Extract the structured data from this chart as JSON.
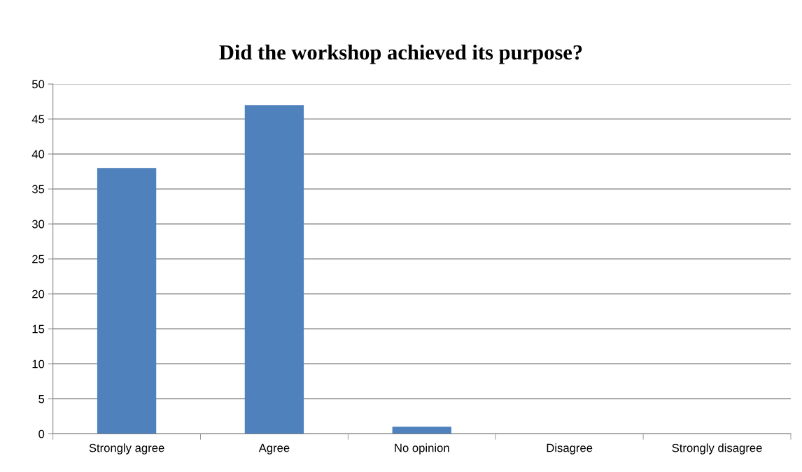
{
  "chart_data": {
    "type": "bar",
    "title": "Did the workshop achieved its purpose?",
    "categories": [
      "Strongly agree",
      "Agree",
      "No opinion",
      "Disagree",
      "Strongly disagree"
    ],
    "values": [
      38,
      47,
      1,
      0,
      0
    ],
    "color": "#4f81bd",
    "ylim": [
      0,
      50
    ],
    "yticks": [
      0,
      5,
      10,
      15,
      20,
      25,
      30,
      35,
      40,
      45,
      50
    ],
    "grid": "y"
  }
}
